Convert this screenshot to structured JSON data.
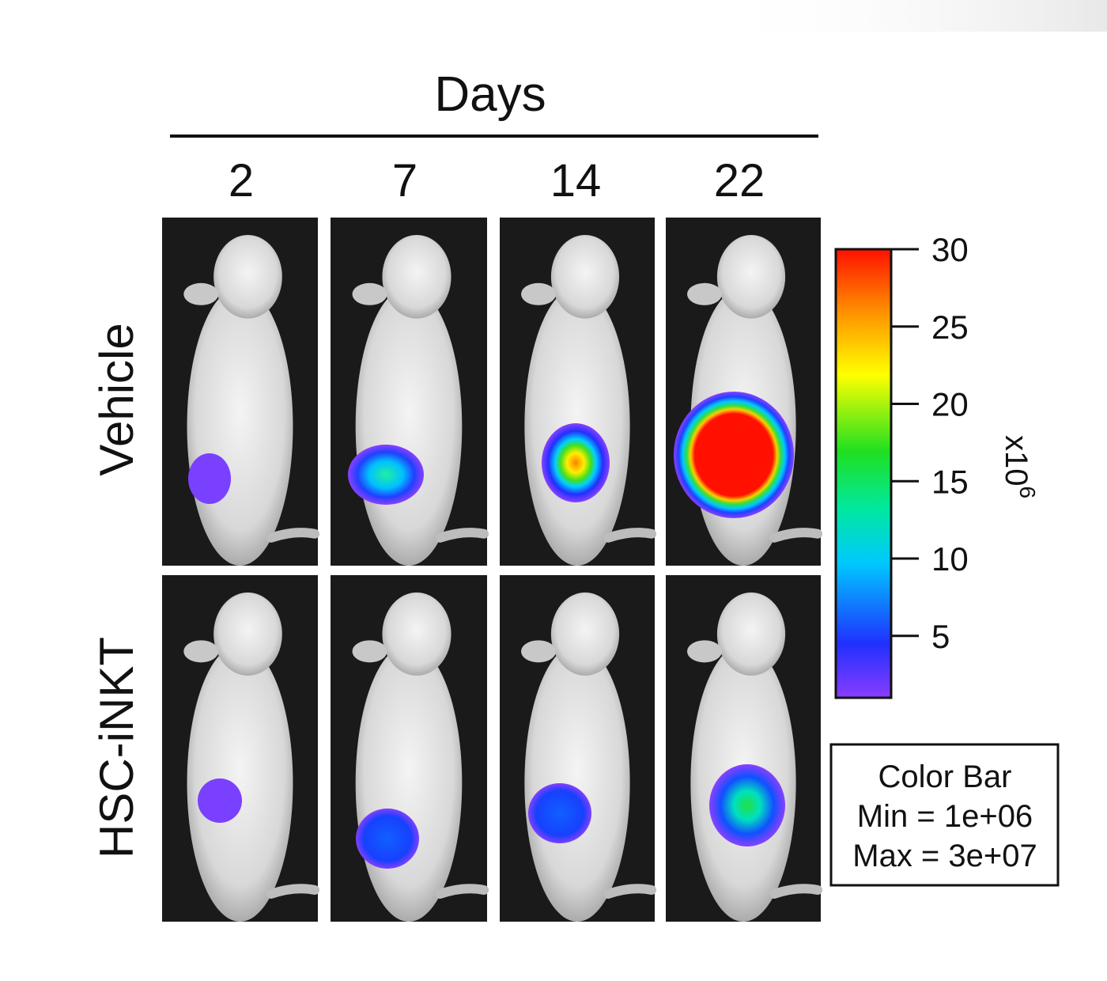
{
  "figure": {
    "header": {
      "title": "Days",
      "columns": [
        "2",
        "7",
        "14",
        "22"
      ]
    },
    "rows": [
      "Vehicle",
      "HSC-iNKT"
    ],
    "color_bar": {
      "lim": [
        1,
        30
      ],
      "ticks": [
        5,
        10,
        15,
        20,
        25,
        30
      ],
      "unit": "x10",
      "unit_exponent": "6"
    },
    "legend": {
      "title": "Color Bar",
      "min": "Min = 1e+06",
      "max": "Max = 3e+07"
    }
  }
}
